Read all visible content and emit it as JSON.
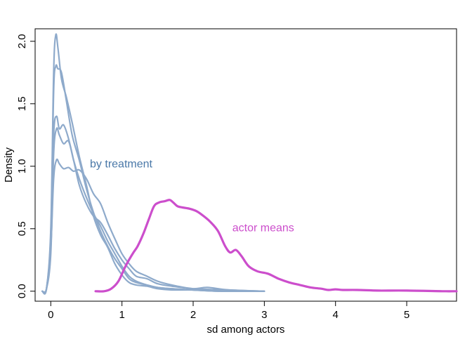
{
  "chart_data": {
    "type": "line",
    "xlabel": "sd among actors",
    "ylabel": "Density",
    "xlim": [
      -0.22,
      5.7
    ],
    "ylim": [
      -0.08,
      2.1
    ],
    "x_ticks": [
      0,
      1,
      2,
      3,
      4,
      5
    ],
    "y_ticks": [
      0.0,
      0.5,
      1.0,
      1.5,
      2.0
    ],
    "x_tick_labels": [
      "0",
      "1",
      "2",
      "3",
      "4",
      "5"
    ],
    "y_tick_labels": [
      "0.0",
      "0.5",
      "1.0",
      "1.5",
      "2.0"
    ],
    "colors": {
      "treatment": "#8eaacb",
      "treatment_label": "#4a78a8",
      "actor": "#cc4ecc"
    },
    "annotations": [
      {
        "text": "by treatment",
        "x": 0.55,
        "y": 0.99,
        "color": "#4a78a8"
      },
      {
        "text": "actor means",
        "x": 2.55,
        "y": 0.48,
        "color": "#cc4ecc"
      }
    ],
    "series": [
      {
        "group": "by treatment",
        "points": [
          [
            -0.12,
            0
          ],
          [
            -0.06,
            0.02
          ],
          [
            0,
            0.5
          ],
          [
            0.04,
            1.75
          ],
          [
            0.07,
            2.05
          ],
          [
            0.1,
            1.95
          ],
          [
            0.15,
            1.7
          ],
          [
            0.22,
            1.55
          ],
          [
            0.3,
            1.35
          ],
          [
            0.4,
            1.08
          ],
          [
            0.5,
            0.85
          ],
          [
            0.6,
            0.6
          ],
          [
            0.7,
            0.45
          ],
          [
            0.8,
            0.35
          ],
          [
            0.9,
            0.22
          ],
          [
            1.0,
            0.13
          ],
          [
            1.1,
            0.07
          ],
          [
            1.2,
            0.05
          ],
          [
            1.35,
            0.04
          ],
          [
            1.5,
            0.02
          ],
          [
            1.7,
            0.01
          ],
          [
            2.0,
            0.01
          ],
          [
            2.4,
            0.0
          ],
          [
            3.0,
            0.0
          ]
        ]
      },
      {
        "group": "by treatment",
        "points": [
          [
            -0.12,
            0
          ],
          [
            -0.06,
            0.02
          ],
          [
            0,
            0.45
          ],
          [
            0.04,
            1.6
          ],
          [
            0.07,
            1.8
          ],
          [
            0.1,
            1.78
          ],
          [
            0.15,
            1.75
          ],
          [
            0.22,
            1.52
          ],
          [
            0.3,
            1.25
          ],
          [
            0.4,
            1.05
          ],
          [
            0.5,
            0.82
          ],
          [
            0.6,
            0.63
          ],
          [
            0.7,
            0.48
          ],
          [
            0.8,
            0.36
          ],
          [
            0.9,
            0.26
          ],
          [
            1.0,
            0.18
          ],
          [
            1.1,
            0.1
          ],
          [
            1.2,
            0.07
          ],
          [
            1.35,
            0.05
          ],
          [
            1.5,
            0.03
          ],
          [
            1.7,
            0.02
          ],
          [
            2.0,
            0.01
          ],
          [
            2.4,
            0.0
          ],
          [
            3.0,
            0.0
          ]
        ]
      },
      {
        "group": "by treatment",
        "points": [
          [
            -0.12,
            0
          ],
          [
            -0.06,
            0.02
          ],
          [
            0,
            0.4
          ],
          [
            0.04,
            1.25
          ],
          [
            0.08,
            1.4
          ],
          [
            0.12,
            1.3
          ],
          [
            0.18,
            1.33
          ],
          [
            0.25,
            1.22
          ],
          [
            0.32,
            1.05
          ],
          [
            0.4,
            0.9
          ],
          [
            0.5,
            0.75
          ],
          [
            0.6,
            0.62
          ],
          [
            0.7,
            0.52
          ],
          [
            0.8,
            0.4
          ],
          [
            0.9,
            0.3
          ],
          [
            1.0,
            0.2
          ],
          [
            1.1,
            0.12
          ],
          [
            1.2,
            0.08
          ],
          [
            1.35,
            0.05
          ],
          [
            1.5,
            0.03
          ],
          [
            1.7,
            0.02
          ],
          [
            2.0,
            0.01
          ],
          [
            2.4,
            0.0
          ],
          [
            3.0,
            0.0
          ]
        ]
      },
      {
        "group": "by treatment",
        "points": [
          [
            -0.12,
            0
          ],
          [
            -0.06,
            0.02
          ],
          [
            0,
            0.35
          ],
          [
            0.04,
            0.9
          ],
          [
            0.08,
            1.05
          ],
          [
            0.12,
            1.02
          ],
          [
            0.18,
            0.98
          ],
          [
            0.25,
            0.99
          ],
          [
            0.32,
            0.96
          ],
          [
            0.4,
            0.97
          ],
          [
            0.5,
            0.9
          ],
          [
            0.6,
            0.78
          ],
          [
            0.7,
            0.7
          ],
          [
            0.8,
            0.55
          ],
          [
            0.9,
            0.42
          ],
          [
            1.0,
            0.3
          ],
          [
            1.1,
            0.22
          ],
          [
            1.2,
            0.16
          ],
          [
            1.35,
            0.12
          ],
          [
            1.5,
            0.08
          ],
          [
            1.7,
            0.05
          ],
          [
            2.0,
            0.02
          ],
          [
            2.5,
            0.01
          ],
          [
            3.0,
            0.0
          ]
        ]
      },
      {
        "group": "by treatment",
        "points": [
          [
            -0.12,
            0
          ],
          [
            -0.06,
            0.02
          ],
          [
            0,
            0.3
          ],
          [
            0.04,
            1.1
          ],
          [
            0.08,
            1.3
          ],
          [
            0.12,
            1.25
          ],
          [
            0.18,
            1.18
          ],
          [
            0.25,
            1.2
          ],
          [
            0.32,
            1.05
          ],
          [
            0.4,
            0.85
          ],
          [
            0.5,
            0.7
          ],
          [
            0.6,
            0.6
          ],
          [
            0.7,
            0.55
          ],
          [
            0.8,
            0.45
          ],
          [
            0.9,
            0.34
          ],
          [
            1.0,
            0.25
          ],
          [
            1.1,
            0.18
          ],
          [
            1.2,
            0.12
          ],
          [
            1.35,
            0.1
          ],
          [
            1.5,
            0.06
          ],
          [
            1.7,
            0.04
          ],
          [
            2.0,
            0.02
          ],
          [
            2.2,
            0.03
          ],
          [
            2.5,
            0.01
          ],
          [
            3.0,
            0.0
          ]
        ]
      },
      {
        "group": "actor means",
        "points": [
          [
            0.63,
            0
          ],
          [
            0.75,
            0.0
          ],
          [
            0.85,
            0.02
          ],
          [
            0.95,
            0.08
          ],
          [
            1.05,
            0.2
          ],
          [
            1.15,
            0.3
          ],
          [
            1.22,
            0.36
          ],
          [
            1.3,
            0.46
          ],
          [
            1.38,
            0.58
          ],
          [
            1.45,
            0.68
          ],
          [
            1.52,
            0.71
          ],
          [
            1.6,
            0.72
          ],
          [
            1.67,
            0.73
          ],
          [
            1.72,
            0.71
          ],
          [
            1.78,
            0.68
          ],
          [
            1.85,
            0.67
          ],
          [
            1.95,
            0.66
          ],
          [
            2.05,
            0.64
          ],
          [
            2.15,
            0.6
          ],
          [
            2.25,
            0.55
          ],
          [
            2.35,
            0.48
          ],
          [
            2.45,
            0.36
          ],
          [
            2.52,
            0.31
          ],
          [
            2.6,
            0.33
          ],
          [
            2.68,
            0.28
          ],
          [
            2.78,
            0.2
          ],
          [
            2.9,
            0.16
          ],
          [
            3.05,
            0.14
          ],
          [
            3.2,
            0.1
          ],
          [
            3.35,
            0.07
          ],
          [
            3.5,
            0.05
          ],
          [
            3.65,
            0.03
          ],
          [
            3.8,
            0.02
          ],
          [
            3.9,
            0.01
          ],
          [
            4.0,
            0.015
          ],
          [
            4.1,
            0.01
          ],
          [
            4.3,
            0.01
          ],
          [
            4.6,
            0.005
          ],
          [
            5.0,
            0.005
          ],
          [
            5.5,
            0.0
          ],
          [
            5.7,
            0.0
          ]
        ]
      }
    ]
  }
}
